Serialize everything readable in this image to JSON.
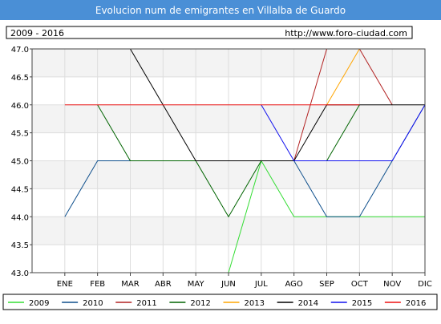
{
  "chart_data": {
    "type": "line",
    "title": "Evolucion num de emigrantes en Villalba de Guardo",
    "period_label": "2009 - 2016",
    "url_label": "http://www.foro-ciudad.com",
    "categories": [
      "ENE",
      "FEB",
      "MAR",
      "ABR",
      "MAY",
      "JUN",
      "JUL",
      "AGO",
      "SEP",
      "OCT",
      "NOV",
      "DIC"
    ],
    "y_ticks": [
      "43.0",
      "43.5",
      "44.0",
      "44.5",
      "45.0",
      "45.5",
      "46.0",
      "46.5",
      "47.0"
    ],
    "ylim": [
      43.0,
      47.0
    ],
    "grid": true,
    "legend_position": "bottom",
    "series": [
      {
        "name": "2009",
        "color": "#33dd33",
        "values": [
          null,
          null,
          null,
          null,
          null,
          43,
          45,
          44,
          44,
          44,
          44,
          44
        ]
      },
      {
        "name": "2010",
        "color": "#0e4f8c",
        "values": [
          44,
          45,
          45,
          45,
          45,
          45,
          45,
          45,
          44,
          44,
          45,
          46
        ]
      },
      {
        "name": "2011",
        "color": "#b22222",
        "values": [
          null,
          null,
          null,
          null,
          null,
          null,
          null,
          45,
          47,
          47,
          46,
          null
        ]
      },
      {
        "name": "2012",
        "color": "#006400",
        "values": [
          null,
          46,
          45,
          45,
          45,
          44,
          45,
          45,
          45,
          46,
          null,
          null
        ]
      },
      {
        "name": "2013",
        "color": "#ffa500",
        "values": [
          null,
          null,
          null,
          null,
          null,
          null,
          null,
          null,
          46,
          47,
          47,
          47
        ]
      },
      {
        "name": "2014",
        "color": "#000000",
        "values": [
          47,
          47,
          47,
          46,
          45,
          45,
          45,
          45,
          46,
          46,
          46,
          46
        ]
      },
      {
        "name": "2015",
        "color": "#1010ee",
        "values": [
          null,
          null,
          null,
          null,
          null,
          null,
          46,
          45,
          45,
          45,
          45,
          46
        ]
      },
      {
        "name": "2016",
        "color": "#ee1010",
        "values": [
          46,
          46,
          46,
          46,
          46,
          46,
          46,
          46,
          46,
          46,
          null,
          null
        ]
      }
    ]
  }
}
